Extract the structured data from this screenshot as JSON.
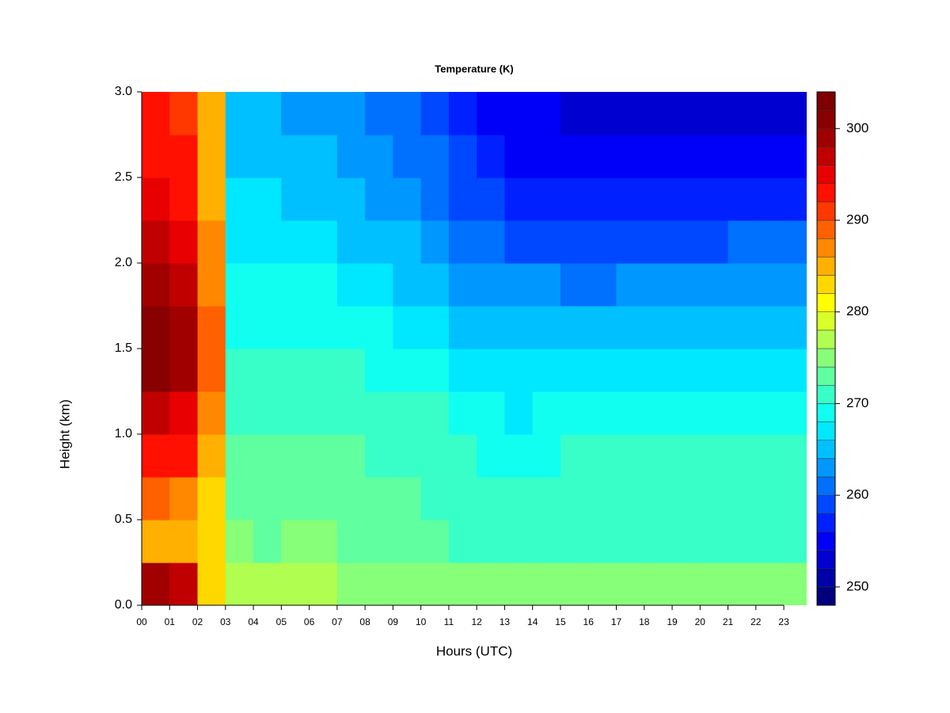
{
  "chart_data": {
    "type": "heatmap",
    "title": "Temperature (K)",
    "x_label": "Hours (UTC)",
    "y_label": "Height (km)",
    "x": [
      0.5,
      1.5,
      2.5,
      3.5,
      4.5,
      5.5,
      6.5,
      7.5,
      8.5,
      9.5,
      10.5,
      11.5,
      12.5,
      13.5,
      14.5,
      15.5,
      16.5,
      17.5,
      18.5,
      19.5,
      20.5,
      21.5,
      22.5,
      23.5
    ],
    "y": [
      0.125,
      0.375,
      0.625,
      0.875,
      1.125,
      1.375,
      1.625,
      1.875,
      2.125,
      2.375,
      2.625,
      2.875
    ],
    "z": [
      [
        298,
        285,
        288,
        292,
        296,
        300,
        301,
        299,
        296,
        294,
        293,
        292
      ],
      [
        296,
        285,
        287,
        292,
        295,
        298,
        298,
        297,
        295,
        293,
        292,
        291
      ],
      [
        283,
        282,
        283,
        285,
        287,
        288,
        288,
        287,
        286,
        285,
        285,
        284
      ],
      [
        277,
        274,
        273,
        272,
        271,
        270,
        269,
        268,
        267,
        266,
        265,
        264
      ],
      [
        276,
        273,
        273,
        272,
        271,
        270,
        269,
        268,
        267,
        266,
        265,
        264
      ],
      [
        276,
        274,
        273,
        272,
        271,
        270,
        269,
        268,
        266,
        265,
        264,
        263
      ],
      [
        276,
        274,
        273,
        272,
        271,
        270,
        269,
        268,
        266,
        265,
        264,
        263
      ],
      [
        275,
        273,
        273,
        272,
        271,
        270,
        269,
        267,
        265,
        264,
        263,
        262
      ],
      [
        275,
        273,
        272,
        271,
        270,
        269,
        268,
        266,
        264,
        263,
        262,
        261
      ],
      [
        275,
        272,
        272,
        271,
        270,
        269,
        267,
        265,
        264,
        262,
        261,
        260
      ],
      [
        275,
        272,
        271,
        270,
        270,
        268,
        266,
        264,
        263,
        261,
        260,
        259
      ],
      [
        274,
        271,
        270,
        270,
        269,
        267,
        265,
        263,
        261,
        259,
        258,
        257
      ],
      [
        274,
        271,
        270,
        269,
        268,
        266,
        264,
        262,
        260,
        258,
        256,
        255
      ],
      [
        274,
        271,
        270,
        268,
        267,
        266,
        264,
        262,
        259,
        257,
        255,
        254
      ],
      [
        274,
        271,
        270,
        269,
        268,
        266,
        264,
        262,
        259,
        257,
        255,
        254
      ],
      [
        274,
        271,
        270,
        270,
        268,
        266,
        264,
        261,
        259,
        256,
        254,
        253
      ],
      [
        274,
        271,
        270,
        270,
        268,
        266,
        264,
        261,
        258,
        256,
        254,
        253
      ],
      [
        275,
        271,
        270,
        270,
        268,
        266,
        264,
        262,
        259,
        256,
        254,
        253
      ],
      [
        275,
        271,
        270,
        270,
        268,
        266,
        264,
        262,
        259,
        256,
        254,
        253
      ],
      [
        274,
        271,
        270,
        270,
        268,
        266,
        264,
        262,
        259,
        256,
        254,
        253
      ],
      [
        274,
        271,
        270,
        270,
        268,
        267,
        265,
        262,
        259,
        256,
        254,
        253
      ],
      [
        274,
        271,
        270,
        270,
        269,
        267,
        265,
        263,
        260,
        257,
        254,
        253
      ],
      [
        274,
        271,
        270,
        270,
        269,
        267,
        265,
        263,
        260,
        257,
        255,
        253
      ],
      [
        274,
        271,
        270,
        270,
        269,
        267,
        265,
        263,
        260,
        257,
        255,
        253
      ]
    ],
    "xlim": [
      0,
      23.82
    ],
    "ylim": [
      0,
      3
    ],
    "xticks": [
      {
        "value": 0,
        "label": "00"
      },
      {
        "value": 1,
        "label": "01"
      },
      {
        "value": 2,
        "label": "02"
      },
      {
        "value": 3,
        "label": "03"
      },
      {
        "value": 4,
        "label": "04"
      },
      {
        "value": 5,
        "label": "05"
      },
      {
        "value": 6,
        "label": "06"
      },
      {
        "value": 7,
        "label": "07"
      },
      {
        "value": 8,
        "label": "08"
      },
      {
        "value": 9,
        "label": "09"
      },
      10,
      11,
      12,
      13,
      14,
      15,
      16,
      17,
      18,
      19,
      20,
      21,
      22,
      23
    ],
    "yticks": [
      {
        "value": 0,
        "label": "0.0"
      },
      0.5,
      {
        "value": 1,
        "label": "1.0"
      },
      1.5,
      {
        "value": 2,
        "label": "2.0"
      },
      2.5,
      {
        "value": 3,
        "label": "3.0"
      }
    ],
    "levels": [
      248,
      250,
      252,
      254,
      256,
      258,
      260,
      262,
      264,
      266,
      268,
      270,
      272,
      274,
      276,
      278,
      280,
      282,
      284,
      286,
      288,
      290,
      292,
      294,
      296,
      298,
      300,
      302,
      304
    ],
    "colors": [
      "#00007f",
      "#0000a8",
      "#0000d0",
      "#0000f8",
      "#0020ff",
      "#0048ff",
      "#0070ff",
      "#0098ff",
      "#00c0ff",
      "#00e8ff",
      "#10fff0",
      "#38ffc8",
      "#60ffa0",
      "#88ff78",
      "#b0ff50",
      "#d8ff28",
      "#ffff00",
      "#ffd800",
      "#ffb000",
      "#ff8800",
      "#ff6000",
      "#ff3800",
      "#ff1000",
      "#e80000",
      "#c00000",
      "#a00000",
      "#880000",
      "#7f0000"
    ],
    "colorbar_ticks": [
      250,
      260,
      270,
      280,
      290,
      300
    ]
  }
}
